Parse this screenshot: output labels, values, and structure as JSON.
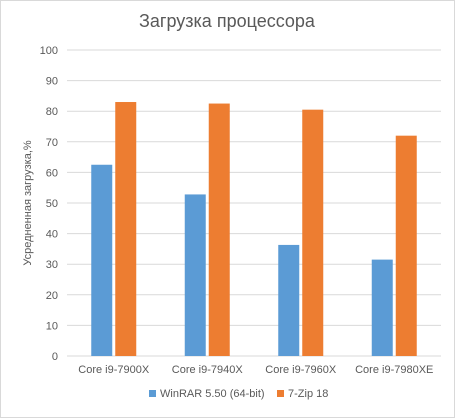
{
  "chart_data": {
    "type": "bar",
    "title": "Загрузка процессора",
    "ylabel": "Усредненная загрузка,%",
    "xlabel": "",
    "ylim": [
      0,
      100
    ],
    "yticks": [
      0,
      10,
      20,
      30,
      40,
      50,
      60,
      70,
      80,
      90,
      100
    ],
    "categories": [
      "Core i9-7900X",
      "Core i9-7940X",
      "Core i9-7960X",
      "Core i9-7980XE"
    ],
    "series": [
      {
        "name": "WinRAR 5.50 (64-bit)",
        "color": "#5b9bd5",
        "values": [
          62.5,
          52.8,
          36.3,
          31.5
        ]
      },
      {
        "name": "7-Zip 18",
        "color": "#ed7d31",
        "values": [
          83,
          82.5,
          80.5,
          72
        ]
      }
    ],
    "grid": true,
    "legend_position": "bottom"
  }
}
